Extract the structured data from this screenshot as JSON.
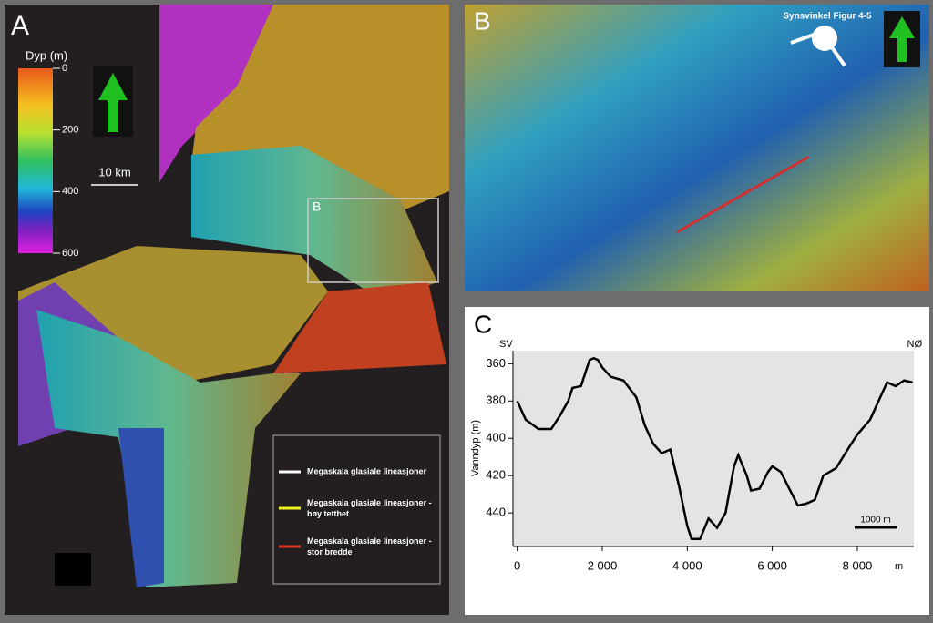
{
  "panel_a": {
    "label": "A",
    "colorbar": {
      "title": "Dyp (m)",
      "lim": [
        0,
        600
      ],
      "ticks": [
        0,
        200,
        400,
        600
      ]
    },
    "scale_bar": "10 km",
    "inset_label": "B",
    "legend": [
      "Megaskala glasiale lineasjoner",
      "Megaskala glasiale lineasjoner - høy tetthet",
      "Megaskala glasiale lineasjoner - stor bredde"
    ]
  },
  "panel_b": {
    "label": "B",
    "annotation": "Synsvinkel Figur 4-5"
  },
  "chart_data": {
    "type": "line",
    "panel_label": "C",
    "left_label": "SV",
    "right_label": "NØ",
    "y_label": "Vanndyp (m)",
    "x_unit": "m",
    "scale_bar": "1000 m",
    "x": [
      0,
      200,
      500,
      800,
      1000,
      1200,
      1300,
      1500,
      1600,
      1700,
      1800,
      1900,
      2000,
      2200,
      2500,
      2800,
      3000,
      3200,
      3400,
      3600,
      3800,
      4000,
      4100,
      4300,
      4500,
      4700,
      4900,
      5100,
      5200,
      5400,
      5500,
      5700,
      5900,
      6000,
      6200,
      6400,
      6600,
      6800,
      7000,
      7200,
      7500,
      7800,
      8000,
      8300,
      8500,
      8700,
      8900,
      9100,
      9300
    ],
    "series": [
      {
        "color": "#000000",
        "values": [
          380,
          390,
          395,
          395,
          388,
          380,
          373,
          372,
          365,
          358,
          357,
          358,
          362,
          367,
          369,
          378,
          393,
          403,
          408,
          406,
          425,
          447,
          454,
          454,
          443,
          448,
          440,
          415,
          409,
          420,
          428,
          427,
          418,
          415,
          418,
          427,
          436,
          435,
          433,
          420,
          416,
          405,
          398,
          390,
          380,
          370,
          372,
          369,
          370
        ]
      }
    ],
    "xlim": [
      -100,
      9330
    ],
    "ylim": [
      353,
      458
    ],
    "y_inverted": true,
    "xticks": [
      0,
      {
        "value": 2000,
        "label": "2 000"
      },
      {
        "value": 4000,
        "label": "4 000"
      },
      {
        "value": 6000,
        "label": "6 000"
      },
      {
        "value": 8000,
        "label": "8 000"
      }
    ],
    "yticks": [
      360,
      380,
      400,
      420,
      440
    ]
  }
}
